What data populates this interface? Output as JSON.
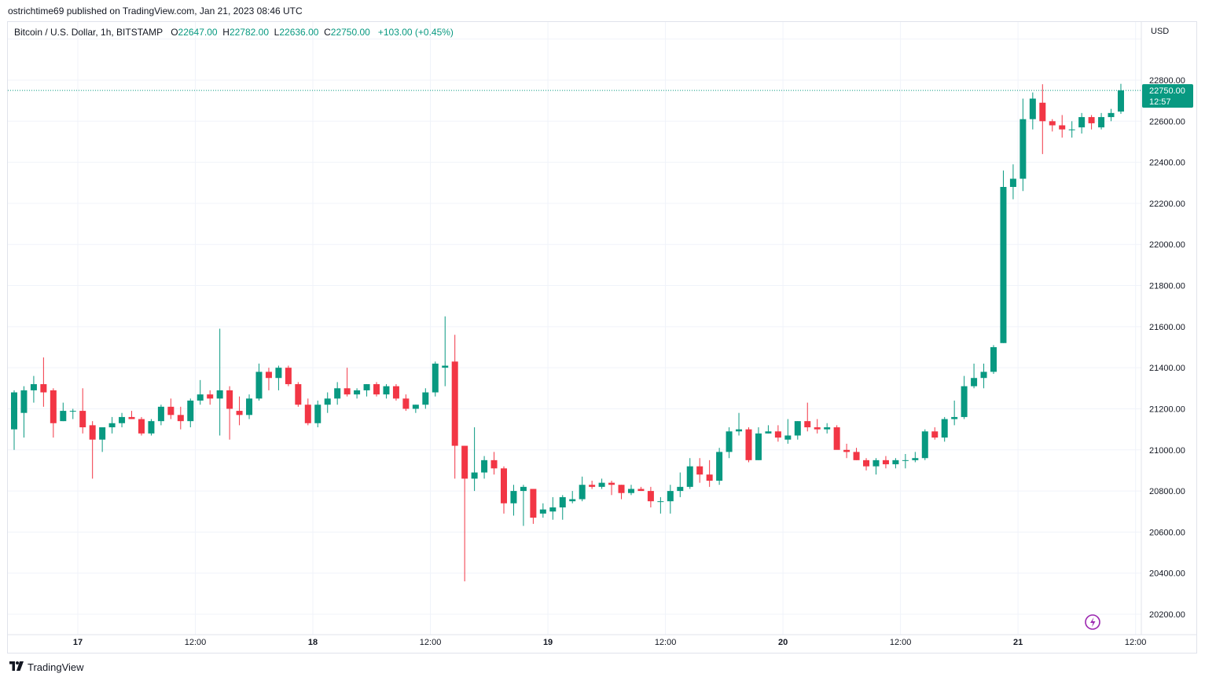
{
  "publisher": "ostrichtime69 published on TradingView.com, Jan 21, 2023 08:46 UTC",
  "legend": {
    "symbol": "Bitcoin / U.S. Dollar, 1h, BITSTAMP",
    "open_key": "O",
    "open": "22647.00",
    "high_key": "H",
    "high": "22782.00",
    "low_key": "L",
    "low": "22636.00",
    "close_key": "C",
    "close": "22750.00",
    "change": "+103.00 (+0.45%)"
  },
  "currency": "USD",
  "last_price": {
    "value": "22750.00",
    "countdown": "12:57"
  },
  "footer": {
    "brand": "TradingView"
  },
  "icons": {
    "lightning": "lightning-icon",
    "logo": "tradingview-logo-icon"
  },
  "colors": {
    "up": "#089981",
    "down": "#f23645",
    "grid": "#f0f3fa",
    "accent": "#9c27b0"
  },
  "chart_data": {
    "type": "candlestick",
    "title": "Bitcoin / U.S. Dollar, 1h, BITSTAMP",
    "ylabel": "USD",
    "ylim": [
      20100,
      23050
    ],
    "y_ticks": [
      "22800.00",
      "22600.00",
      "22400.00",
      "22200.00",
      "22000.00",
      "21800.00",
      "21600.00",
      "21400.00",
      "21200.00",
      "21000.00",
      "20800.00",
      "20600.00",
      "20400.00",
      "20200.00"
    ],
    "x_ticks": [
      {
        "label": "17",
        "index": 6.5,
        "bold": true
      },
      {
        "label": "12:00",
        "index": 18.5,
        "bold": false
      },
      {
        "label": "18",
        "index": 30.5,
        "bold": true
      },
      {
        "label": "12:00",
        "index": 42.5,
        "bold": false
      },
      {
        "label": "19",
        "index": 54.5,
        "bold": true
      },
      {
        "label": "12:00",
        "index": 66.5,
        "bold": false
      },
      {
        "label": "20",
        "index": 78.5,
        "bold": true
      },
      {
        "label": "12:00",
        "index": 90.5,
        "bold": false
      },
      {
        "label": "21",
        "index": 102.5,
        "bold": true
      },
      {
        "label": "12:00",
        "index": 114.5,
        "bold": false
      }
    ],
    "grid": true,
    "candles": [
      [
        21100,
        21290,
        21000,
        21280
      ],
      [
        21180,
        21310,
        21060,
        21290
      ],
      [
        21290,
        21360,
        21230,
        21320
      ],
      [
        21320,
        21450,
        21210,
        21280
      ],
      [
        21290,
        21300,
        21060,
        21130
      ],
      [
        21140,
        21230,
        21140,
        21190
      ],
      [
        21190,
        21200,
        21150,
        21190
      ],
      [
        21190,
        21300,
        21080,
        21110
      ],
      [
        21120,
        21140,
        20860,
        21050
      ],
      [
        21050,
        21110,
        20990,
        21110
      ],
      [
        21110,
        21160,
        21080,
        21130
      ],
      [
        21130,
        21180,
        21110,
        21160
      ],
      [
        21160,
        21190,
        21150,
        21150
      ],
      [
        21150,
        21160,
        21070,
        21080
      ],
      [
        21080,
        21150,
        21070,
        21140
      ],
      [
        21140,
        21220,
        21120,
        21210
      ],
      [
        21210,
        21250,
        21150,
        21170
      ],
      [
        21170,
        21210,
        21100,
        21140
      ],
      [
        21140,
        21250,
        21110,
        21240
      ],
      [
        21240,
        21340,
        21220,
        21270
      ],
      [
        21270,
        21290,
        21220,
        21250
      ],
      [
        21250,
        21590,
        21070,
        21290
      ],
      [
        21290,
        21310,
        21050,
        21200
      ],
      [
        21190,
        21260,
        21120,
        21170
      ],
      [
        21170,
        21270,
        21150,
        21250
      ],
      [
        21250,
        21420,
        21240,
        21380
      ],
      [
        21380,
        21400,
        21290,
        21350
      ],
      [
        21350,
        21410,
        21290,
        21400
      ],
      [
        21400,
        21410,
        21310,
        21320
      ],
      [
        21320,
        21330,
        21210,
        21220
      ],
      [
        21220,
        21250,
        21120,
        21130
      ],
      [
        21130,
        21240,
        21110,
        21220
      ],
      [
        21220,
        21280,
        21180,
        21250
      ],
      [
        21250,
        21330,
        21220,
        21300
      ],
      [
        21300,
        21400,
        21260,
        21270
      ],
      [
        21270,
        21300,
        21250,
        21290
      ],
      [
        21290,
        21320,
        21260,
        21320
      ],
      [
        21320,
        21330,
        21260,
        21270
      ],
      [
        21270,
        21320,
        21250,
        21310
      ],
      [
        21310,
        21320,
        21240,
        21250
      ],
      [
        21250,
        21270,
        21190,
        21200
      ],
      [
        21200,
        21220,
        21180,
        21220
      ],
      [
        21220,
        21300,
        21200,
        21280
      ],
      [
        21280,
        21430,
        21260,
        21420
      ],
      [
        21400,
        21650,
        21310,
        21410
      ],
      [
        21430,
        21560,
        20860,
        21020
      ],
      [
        21020,
        21020,
        20360,
        20860
      ],
      [
        20860,
        21110,
        20800,
        20890
      ],
      [
        20890,
        20970,
        20860,
        20950
      ],
      [
        20950,
        20990,
        20880,
        20910
      ],
      [
        20910,
        20920,
        20690,
        20740
      ],
      [
        20740,
        20830,
        20680,
        20800
      ],
      [
        20800,
        20830,
        20630,
        20820
      ],
      [
        20810,
        20810,
        20640,
        20670
      ],
      [
        20690,
        20740,
        20670,
        20710
      ],
      [
        20700,
        20770,
        20660,
        20720
      ],
      [
        20720,
        20780,
        20660,
        20770
      ],
      [
        20750,
        20800,
        20740,
        20760
      ],
      [
        20760,
        20870,
        20750,
        20830
      ],
      [
        20830,
        20850,
        20810,
        20820
      ],
      [
        20820,
        20860,
        20810,
        20840
      ],
      [
        20840,
        20850,
        20780,
        20830
      ],
      [
        20830,
        20830,
        20760,
        20790
      ],
      [
        20790,
        20830,
        20780,
        20810
      ],
      [
        20810,
        20820,
        20800,
        20800
      ],
      [
        20800,
        20820,
        20720,
        20750
      ],
      [
        20750,
        20770,
        20690,
        20750
      ],
      [
        20750,
        20830,
        20690,
        20800
      ],
      [
        20800,
        20890,
        20770,
        20820
      ],
      [
        20820,
        20960,
        20810,
        20920
      ],
      [
        20920,
        20960,
        20840,
        20880
      ],
      [
        20880,
        20950,
        20820,
        20850
      ],
      [
        20850,
        21010,
        20830,
        20990
      ],
      [
        20990,
        21110,
        20960,
        21090
      ],
      [
        21090,
        21180,
        21070,
        21100
      ],
      [
        21100,
        21110,
        20940,
        20950
      ],
      [
        20950,
        21110,
        20950,
        21080
      ],
      [
        21080,
        21120,
        21080,
        21090
      ],
      [
        21090,
        21120,
        21040,
        21060
      ],
      [
        21050,
        21150,
        21030,
        21070
      ],
      [
        21070,
        21140,
        21050,
        21140
      ],
      [
        21140,
        21230,
        21090,
        21110
      ],
      [
        21110,
        21150,
        21080,
        21100
      ],
      [
        21100,
        21130,
        21080,
        21110
      ],
      [
        21110,
        21120,
        21020,
        21000
      ],
      [
        21000,
        21030,
        20960,
        20990
      ],
      [
        20990,
        21010,
        20950,
        20950
      ],
      [
        20950,
        20960,
        20900,
        20920
      ],
      [
        20920,
        20960,
        20880,
        20950
      ],
      [
        20950,
        20970,
        20910,
        20930
      ],
      [
        20930,
        20960,
        20910,
        20950
      ],
      [
        20950,
        20980,
        20910,
        20950
      ],
      [
        20950,
        20990,
        20940,
        20960
      ],
      [
        20960,
        21100,
        20950,
        21090
      ],
      [
        21090,
        21110,
        21050,
        21060
      ],
      [
        21060,
        21160,
        21040,
        21150
      ],
      [
        21150,
        21240,
        21120,
        21160
      ],
      [
        21160,
        21360,
        21150,
        21310
      ],
      [
        21310,
        21420,
        21300,
        21350
      ],
      [
        21350,
        21420,
        21300,
        21380
      ],
      [
        21380,
        21510,
        21370,
        21500
      ],
      [
        21520,
        22360,
        21520,
        22280
      ],
      [
        22280,
        22390,
        22220,
        22320
      ],
      [
        22320,
        22710,
        22260,
        22610
      ],
      [
        22610,
        22740,
        22560,
        22710
      ],
      [
        22690,
        22780,
        22440,
        22600
      ],
      [
        22600,
        22610,
        22550,
        22580
      ],
      [
        22580,
        22630,
        22520,
        22560
      ],
      [
        22560,
        22600,
        22520,
        22560
      ],
      [
        22570,
        22640,
        22540,
        22620
      ],
      [
        22620,
        22630,
        22560,
        22590
      ],
      [
        22570,
        22640,
        22560,
        22620
      ],
      [
        22620,
        22660,
        22600,
        22640
      ],
      [
        22647,
        22782,
        22636,
        22750
      ]
    ]
  }
}
